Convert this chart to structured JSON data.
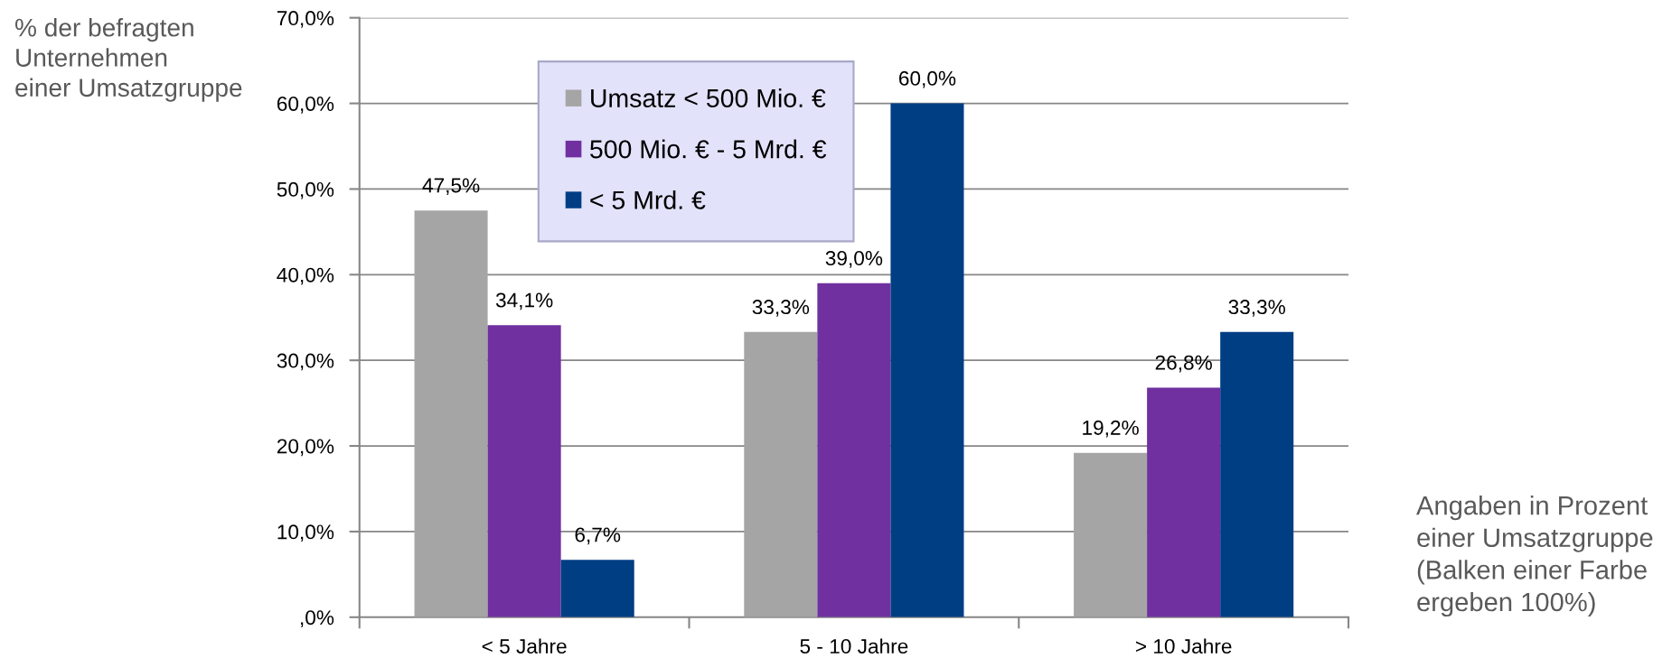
{
  "chart_data": {
    "type": "bar",
    "ylabel": "% der befragten\nUnternehmen\neiner Umsatzgruppe",
    "categories": [
      "< 5 Jahre",
      "5 - 10 Jahre",
      "> 10 Jahre"
    ],
    "series": [
      {
        "name": "Umsatz < 500 Mio. €",
        "color": "#a5a5a5",
        "values": [
          47.5,
          33.3,
          19.2
        ],
        "value_labels": [
          "47,5%",
          "33,3%",
          "19,2%"
        ]
      },
      {
        "name": "500 Mio. € - 5 Mrd. €",
        "color": "#7030a0",
        "values": [
          34.1,
          39.0,
          26.8
        ],
        "value_labels": [
          "34,1%",
          "39,0%",
          "26,8%"
        ]
      },
      {
        "name": "< 5 Mrd. €",
        "color": "#003e84",
        "values": [
          6.7,
          60.0,
          33.3
        ],
        "value_labels": [
          "6,7%",
          "60,0%",
          "33,3%"
        ]
      }
    ],
    "ylim": [
      0,
      70
    ],
    "yticks": [
      {
        "value": 0,
        "label": ",0%"
      },
      {
        "value": 10,
        "label": "10,0%"
      },
      {
        "value": 20,
        "label": "20,0%"
      },
      {
        "value": 30,
        "label": "30,0%"
      },
      {
        "value": 40,
        "label": "40,0%"
      },
      {
        "value": 50,
        "label": "50,0%"
      },
      {
        "value": 60,
        "label": "60,0%"
      },
      {
        "value": 70,
        "label": "70,0%"
      }
    ],
    "grid": "y",
    "legend": "top left",
    "annotations": [
      "Angaben in Prozent\neiner Umsatzgruppe\n(Balken einer Farbe\nergeben 100%)"
    ]
  }
}
